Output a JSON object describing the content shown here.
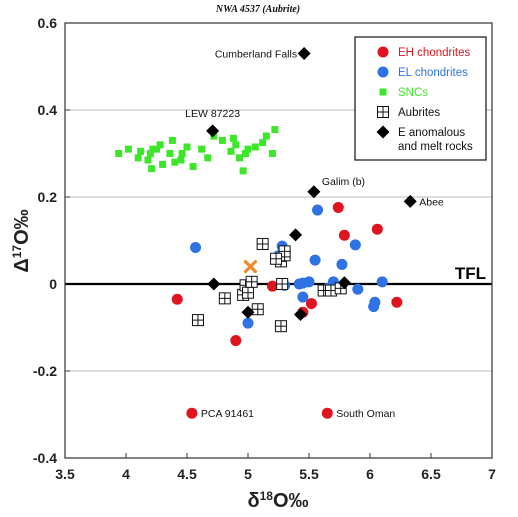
{
  "chart_data": {
    "type": "scatter",
    "title": "NWA 4537 (Aubrite)",
    "xlabel": "δ18O‰",
    "ylabel": "Δ17O‰",
    "xlim": [
      3.5,
      7
    ],
    "ylim": [
      -0.4,
      0.6
    ],
    "x_ticks": [
      "3.5",
      "4",
      "4.5",
      "5",
      "5.5",
      "6",
      "6.5",
      "7"
    ],
    "y_ticks": [
      "0.6",
      "0.4",
      "0.2",
      "0",
      "-0.2",
      "-0.4"
    ],
    "grid": "horizontal",
    "legend_position": "top-right",
    "colors": {
      "eh": "#e0141e",
      "el": "#2f72e4",
      "snc": "#3ee62a",
      "e_anom": "#000000",
      "sample": "#ee8a2a",
      "tfl": "#000000"
    },
    "tfl_label": "TFL",
    "tfl_y": 0,
    "legend": [
      {
        "key": "eh",
        "label": "EH chondrites",
        "color": "#e0141e"
      },
      {
        "key": "el",
        "label": "EL chondrites",
        "color": "#2f72e4"
      },
      {
        "key": "snc",
        "label": "SNCs",
        "color": "#3ee62a"
      },
      {
        "key": "aub",
        "label": "Aubrites",
        "color": "#111111"
      },
      {
        "key": "e_anom",
        "label": "E anomalous",
        "label2": "and melt rocks",
        "color": "#111111"
      }
    ],
    "series": [
      {
        "key": "eh",
        "name": "EH chondrites",
        "points": [
          [
            4.42,
            -0.035
          ],
          [
            4.9,
            -0.13
          ],
          [
            5.2,
            -0.005
          ],
          [
            5.45,
            -0.065
          ],
          [
            5.52,
            -0.045
          ],
          [
            5.74,
            0.176
          ],
          [
            5.79,
            0.112
          ],
          [
            6.06,
            0.126
          ],
          [
            6.22,
            -0.042
          ],
          [
            4.54,
            -0.297
          ],
          [
            5.65,
            -0.297
          ]
        ]
      },
      {
        "key": "el",
        "name": "EL chondrites",
        "points": [
          [
            4.57,
            0.084
          ],
          [
            5.0,
            -0.09
          ],
          [
            5.25,
            0.065
          ],
          [
            5.28,
            0.087
          ],
          [
            5.3,
            -0.003
          ],
          [
            5.42,
            0.0
          ],
          [
            5.45,
            -0.03
          ],
          [
            5.5,
            0.005
          ],
          [
            5.55,
            0.055
          ],
          [
            5.57,
            0.17
          ],
          [
            5.65,
            -0.01
          ],
          [
            5.7,
            0.005
          ],
          [
            5.77,
            0.045
          ],
          [
            5.88,
            0.09
          ],
          [
            5.9,
            -0.012
          ],
          [
            6.03,
            -0.052
          ],
          [
            6.04,
            -0.042
          ],
          [
            6.1,
            0.005
          ],
          [
            5.45,
            0.002
          ]
        ]
      },
      {
        "key": "snc",
        "name": "SNCs",
        "points": [
          [
            3.94,
            0.3
          ],
          [
            4.02,
            0.31
          ],
          [
            4.1,
            0.29
          ],
          [
            4.12,
            0.305
          ],
          [
            4.18,
            0.285
          ],
          [
            4.2,
            0.3
          ],
          [
            4.21,
            0.265
          ],
          [
            4.22,
            0.31
          ],
          [
            4.28,
            0.32
          ],
          [
            4.3,
            0.275
          ],
          [
            4.36,
            0.3
          ],
          [
            4.38,
            0.33
          ],
          [
            4.4,
            0.28
          ],
          [
            4.46,
            0.3
          ],
          [
            4.5,
            0.315
          ],
          [
            4.55,
            0.27
          ],
          [
            4.62,
            0.31
          ],
          [
            4.67,
            0.29
          ],
          [
            4.72,
            0.34
          ],
          [
            4.88,
            0.335
          ],
          [
            4.9,
            0.32
          ],
          [
            4.93,
            0.29
          ],
          [
            4.96,
            0.26
          ],
          [
            5.0,
            0.31
          ],
          [
            5.12,
            0.325
          ],
          [
            5.15,
            0.34
          ],
          [
            5.2,
            0.3
          ],
          [
            5.22,
            0.355
          ],
          [
            4.79,
            0.33
          ],
          [
            4.98,
            0.3
          ],
          [
            5.06,
            0.315
          ],
          [
            4.86,
            0.305
          ],
          [
            4.25,
            0.31
          ],
          [
            4.45,
            0.285
          ]
        ]
      },
      {
        "key": "aub",
        "name": "Aubrites",
        "points": [
          [
            4.59,
            -0.083
          ],
          [
            4.81,
            -0.033
          ],
          [
            4.96,
            -0.025
          ],
          [
            4.98,
            -0.003
          ],
          [
            5.0,
            -0.02
          ],
          [
            5.03,
            0.005
          ],
          [
            5.08,
            -0.058
          ],
          [
            5.12,
            0.092
          ],
          [
            5.27,
            0.052
          ],
          [
            5.27,
            -0.097
          ],
          [
            5.28,
            0.0
          ],
          [
            5.3,
            0.066
          ],
          [
            5.3,
            0.075
          ],
          [
            5.62,
            -0.015
          ],
          [
            5.68,
            -0.015
          ],
          [
            5.76,
            -0.01
          ],
          [
            5.23,
            0.058
          ]
        ]
      },
      {
        "key": "e_anom",
        "name": "E anomalous and melt rocks",
        "points": [
          [
            4.72,
            0.0
          ],
          [
            4.71,
            0.352
          ],
          [
            5.0,
            -0.065
          ],
          [
            5.39,
            0.113
          ],
          [
            5.43,
            -0.07
          ],
          [
            5.46,
            0.53
          ],
          [
            5.54,
            0.212
          ],
          [
            5.79,
            0.003
          ],
          [
            6.33,
            0.19
          ]
        ]
      },
      {
        "key": "sample",
        "name": "NWA 4537",
        "points": [
          [
            5.02,
            0.04
          ]
        ]
      }
    ],
    "annotations": [
      {
        "text": "Cumberland Falls",
        "x": 5.46,
        "y": 0.53,
        "anchor": "end",
        "dx": -7,
        "dy": 4
      },
      {
        "text": "LEW 87223",
        "x": 4.71,
        "y": 0.352,
        "anchor": "middle",
        "dx": 0,
        "dy": -14
      },
      {
        "text": "Galim (b)",
        "x": 5.54,
        "y": 0.212,
        "anchor": "start",
        "dx": 8,
        "dy": -7
      },
      {
        "text": "Abee",
        "x": 6.33,
        "y": 0.19,
        "anchor": "start",
        "dx": 9,
        "dy": 4
      },
      {
        "text": "PCA 91461",
        "x": 4.54,
        "y": -0.297,
        "anchor": "start",
        "dx": 9,
        "dy": 4
      },
      {
        "text": "South Oman",
        "x": 5.65,
        "y": -0.297,
        "anchor": "start",
        "dx": 9,
        "dy": 4
      }
    ]
  }
}
